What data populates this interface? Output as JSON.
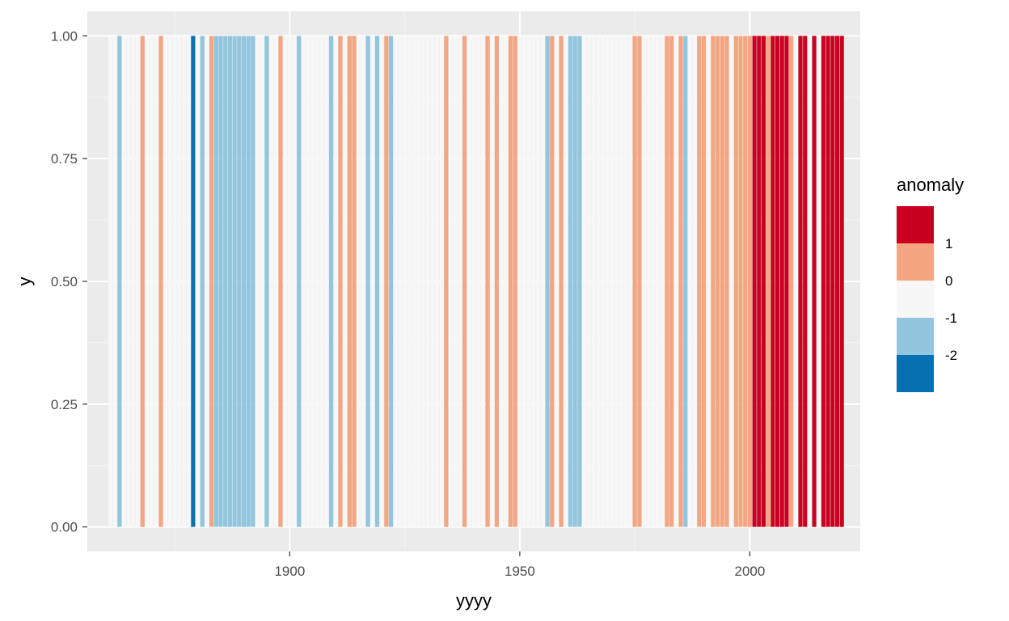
{
  "chart_data": {
    "type": "bar",
    "title": "",
    "xlabel": "yyyy",
    "ylabel": "y",
    "xlim": [
      1856,
      2024
    ],
    "ylim": [
      -0.05,
      1.05
    ],
    "x_ticks": [
      1900,
      1950,
      2000
    ],
    "x_tick_labels": [
      "1900",
      "1950",
      "2000"
    ],
    "y_ticks": [
      0,
      0.25,
      0.5,
      0.75,
      1
    ],
    "y_tick_labels": [
      "0.00",
      "0.25",
      "0.50",
      "0.75",
      "1.00"
    ],
    "grid": true,
    "legend": {
      "title": "anomaly",
      "placement": "right",
      "labels": [
        "1",
        "0",
        "-1",
        "-2"
      ],
      "colors": [
        "#ca0020",
        "#f4a582",
        "#f7f7f7",
        "#92c5de",
        "#0571b0"
      ]
    },
    "bar_value": 1,
    "years_start": 1861,
    "years_end": 2020,
    "year_classes": {
      "strong_negative": [
        1879
      ],
      "negative": [
        1863,
        1881,
        1884,
        1885,
        1886,
        1887,
        1888,
        1889,
        1890,
        1891,
        1892,
        1895,
        1902,
        1909,
        1917,
        1919,
        1922,
        1956,
        1961,
        1962,
        1963,
        1986
      ],
      "positive": [
        1868,
        1872,
        1883,
        1898,
        1911,
        1913,
        1914,
        1921,
        1934,
        1938,
        1943,
        1945,
        1948,
        1949,
        1957,
        1959,
        1975,
        1976,
        1982,
        1983,
        1985,
        1989,
        1990,
        1992,
        1993,
        1994,
        1995,
        1997,
        1998,
        1999,
        2000,
        2004,
        2009
      ],
      "strong_positive": [
        2001,
        2002,
        2003,
        2005,
        2006,
        2007,
        2008,
        2011,
        2012,
        2014,
        2016,
        2017,
        2018,
        2019,
        2020
      ]
    },
    "class_colors": {
      "strong_positive": "#ca0020",
      "positive": "#f4a582",
      "neutral": "#f7f7f7",
      "negative": "#92c5de",
      "strong_negative": "#0571b0"
    }
  },
  "colors": {
    "panel_background": "#ebebeb",
    "grid_major": "#ffffff",
    "grid_minor": "#f5f5f5"
  }
}
